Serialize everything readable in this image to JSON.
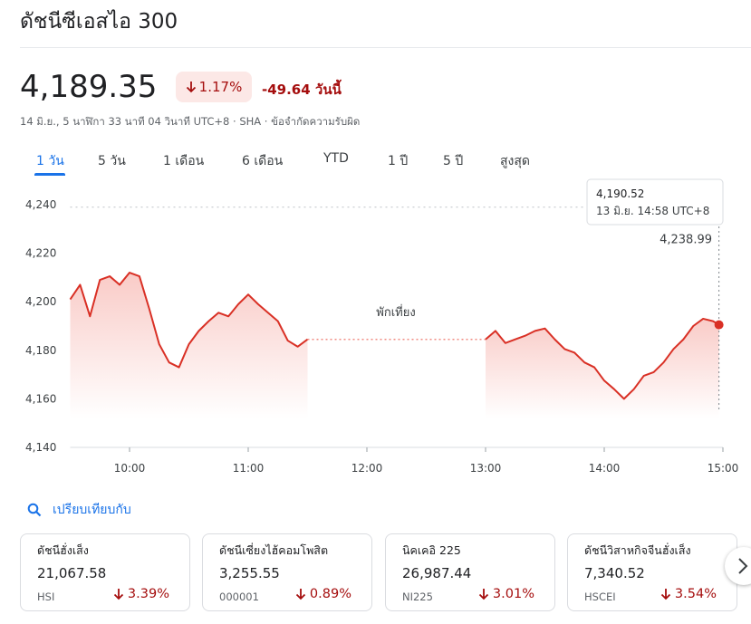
{
  "header": {
    "title": "ดัชนีซีเอสไอ 300",
    "price": "4,189.35",
    "change_percent": "1.17%",
    "change": "-49.64",
    "change_period": "วันนี้",
    "timestamp": "14 มิ.ย., 5 นาฬิกา 33 นาที 04 วินาที UTC+8 · SHA · ข้อจำกัดความรับผิด"
  },
  "tabs": [
    "1 วัน",
    "5 วัน",
    "1 เดือน",
    "6 เดือน",
    "YTD",
    "1 ปี",
    "5 ปี",
    "สูงสุด"
  ],
  "chart_data": {
    "type": "line",
    "color": "#d93025",
    "x": [
      "09:30",
      "09:35",
      "09:40",
      "09:45",
      "09:50",
      "09:55",
      "10:00",
      "10:05",
      "10:10",
      "10:15",
      "10:20",
      "10:25",
      "10:30",
      "10:35",
      "10:40",
      "10:45",
      "10:50",
      "10:55",
      "11:00",
      "11:05",
      "11:10",
      "11:15",
      "11:20",
      "11:25",
      "11:30",
      "12:00",
      "13:00",
      "13:05",
      "13:10",
      "13:15",
      "13:20",
      "13:25",
      "13:30",
      "13:35",
      "13:40",
      "13:45",
      "13:50",
      "13:55",
      "14:00",
      "14:05",
      "14:10",
      "14:15",
      "14:20",
      "14:25",
      "14:30",
      "14:35",
      "14:40",
      "14:45",
      "14:50",
      "14:55",
      "14:58"
    ],
    "values": [
      4201,
      4207,
      4194,
      4209,
      4210.5,
      4207,
      4212,
      4210.5,
      4197,
      4182.5,
      4175,
      4173,
      4182.5,
      4188,
      4192,
      4195.5,
      4194,
      4199,
      4203,
      4199,
      4195.5,
      4192,
      4184,
      4181.5,
      4184.5,
      null,
      4184.5,
      4188,
      4183,
      4184.5,
      4186,
      4188,
      4189,
      4184.5,
      4180.5,
      4179,
      4175,
      4173,
      4167.5,
      4164,
      4160,
      4164,
      4169.5,
      4171,
      4175,
      4180.5,
      4184.5,
      4190,
      4193,
      4192,
      4190.52
    ],
    "xlim": [
      "09:30",
      "15:00"
    ],
    "xticks": [
      "10:00",
      "11:00",
      "12:00",
      "13:00",
      "14:00",
      "15:00"
    ],
    "ylim": [
      4140,
      4240
    ],
    "yticks": [
      {
        "value": 4140,
        "label": "4,140"
      },
      {
        "value": 4160,
        "label": "4,160"
      },
      {
        "value": 4180,
        "label": "4,180"
      },
      {
        "value": 4200,
        "label": "4,200"
      },
      {
        "value": 4220,
        "label": "4,220"
      },
      {
        "value": 4240,
        "label": "4,240"
      }
    ],
    "grid": false,
    "previous_close": {
      "value": 4238.99,
      "label": "4,238.99"
    },
    "annotation": "พักเที่ยง",
    "tooltip": {
      "value": "4,190.52",
      "time": "13 มิ.ย. 14:58 UTC+8"
    }
  },
  "compare": {
    "title": "เปรียบเทียบกับ",
    "cards": [
      {
        "name": "ดัชนีฮั่งเส็ง",
        "price": "21,067.58",
        "symbol": "HSI",
        "change": "3.39%"
      },
      {
        "name": "ดัชนีเซี่ยงไฮ้คอมโพสิต",
        "price": "3,255.55",
        "symbol": "000001",
        "change": "0.89%"
      },
      {
        "name": "นิคเคอิ 225",
        "price": "26,987.44",
        "symbol": "NI225",
        "change": "3.01%"
      },
      {
        "name": "ดัชนีวิสาหกิจจีนฮั่งเส็ง",
        "price": "7,340.52",
        "symbol": "HSCEI",
        "change": "3.54%"
      }
    ]
  }
}
